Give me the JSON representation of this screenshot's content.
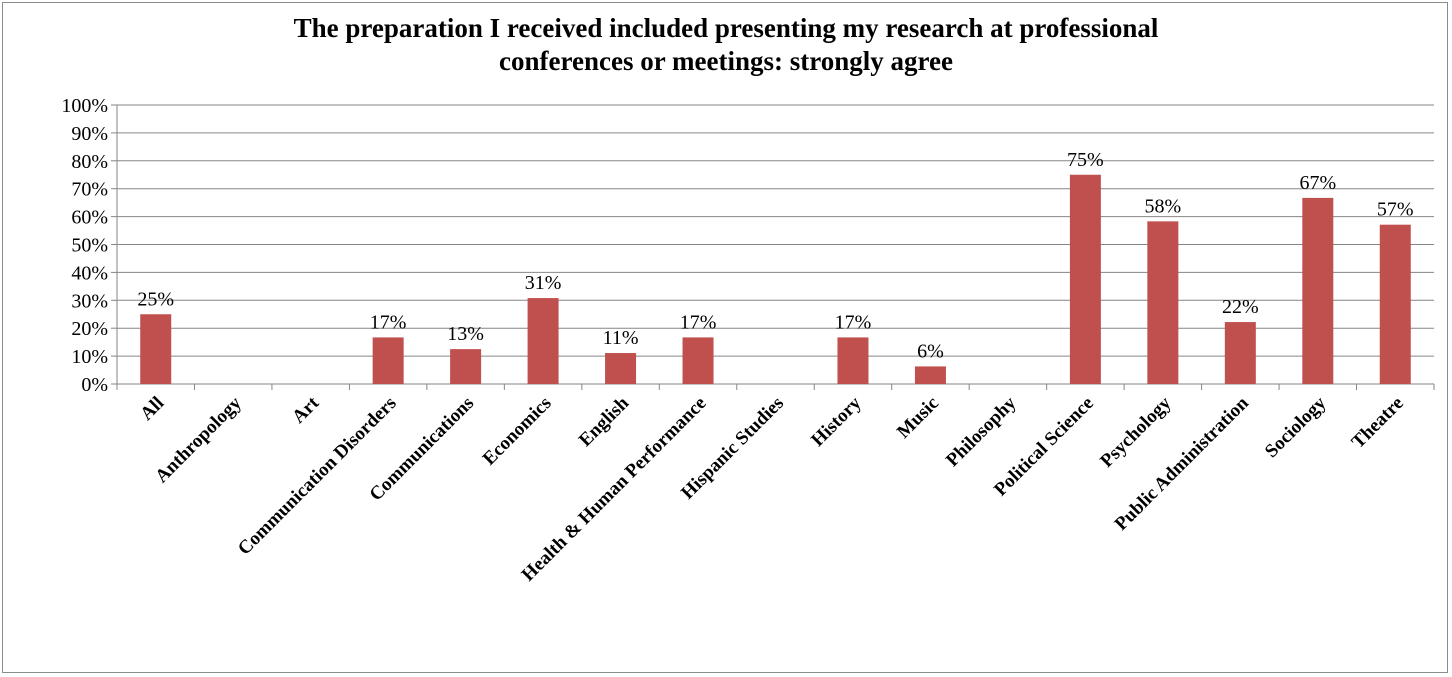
{
  "chart_data": {
    "type": "bar",
    "title_lines": [
      "The preparation I received included presenting my research at professional",
      "conferences or meetings: strongly agree"
    ],
    "categories": [
      "All",
      "Anthropology",
      "Art",
      "Communication Disorders",
      "Communications",
      "Economics",
      "English",
      "Health & Human Performance",
      "Hispanic Studies",
      "History",
      "Music",
      "Philosophy",
      "Political Science",
      "Psychology",
      "Public Administration",
      "Sociology",
      "Theatre"
    ],
    "values": [
      25,
      null,
      null,
      17,
      13,
      31,
      11,
      17,
      null,
      17,
      6,
      null,
      75,
      58,
      22,
      67,
      57
    ],
    "plotted_values": [
      25,
      0,
      0,
      16.7,
      12.5,
      30.8,
      11.1,
      16.7,
      0,
      16.7,
      6.3,
      0,
      75,
      58.3,
      22.2,
      66.7,
      57.1
    ],
    "data_labels": [
      "25%",
      "",
      "",
      "17%",
      "13%",
      "31%",
      "11%",
      "17%",
      "",
      "17%",
      "6%",
      "",
      "75%",
      "58%",
      "22%",
      "67%",
      "57%"
    ],
    "y_ticks": [
      "0%",
      "10%",
      "20%",
      "30%",
      "40%",
      "50%",
      "60%",
      "70%",
      "80%",
      "90%",
      "100%"
    ],
    "ylim": [
      0,
      100
    ],
    "grid": true,
    "legend": "none",
    "bar_color": "#c0504d"
  }
}
